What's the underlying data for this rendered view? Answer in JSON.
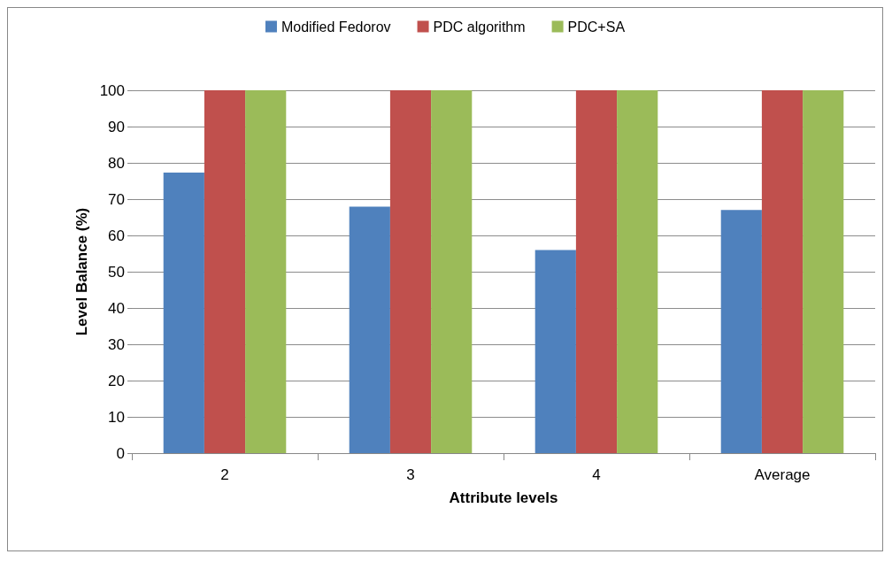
{
  "chart_data": {
    "type": "bar",
    "xlabel": "Attribute levels",
    "ylabel": "Level Balance (%)",
    "categories": [
      "2",
      "3",
      "4",
      "Average"
    ],
    "series": [
      {
        "name": "Modified Fedorov",
        "color": "#4f81bd",
        "values": [
          77.3,
          67.9,
          56,
          67
        ]
      },
      {
        "name": "PDC algorithm",
        "color": "#c0504d",
        "values": [
          100,
          100,
          100,
          100
        ]
      },
      {
        "name": "PDC+SA",
        "color": "#9bbb59",
        "values": [
          100,
          100,
          100,
          100
        ]
      }
    ],
    "ylim": [
      0,
      100
    ],
    "yticks": [
      0,
      10,
      20,
      30,
      40,
      50,
      60,
      70,
      80,
      90,
      100
    ],
    "grid": "y",
    "legend": "top"
  }
}
